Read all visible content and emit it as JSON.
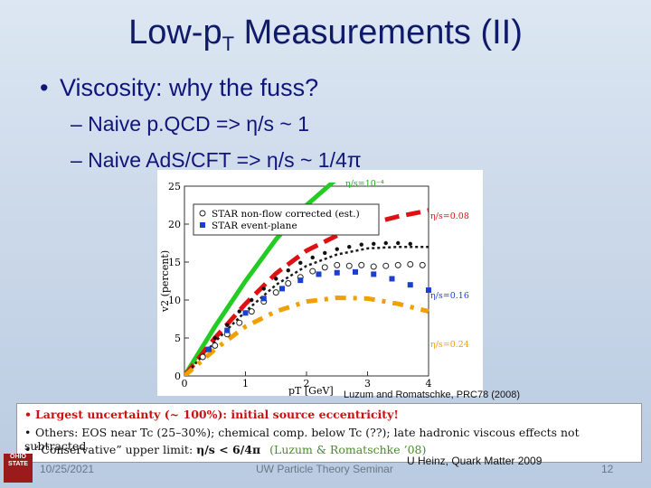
{
  "title": {
    "main": "Low-p",
    "sub": "T",
    "rest": " Measurements (II)"
  },
  "bullet1": "Viscosity: why the fuss?",
  "bullet2": "– Naive p.QCD => η/s ~ 1",
  "bullet3": "– Naive AdS/CFT => η/s ~ 1/4π",
  "chart_data": {
    "type": "scatter",
    "xlabel": "pT [GeV]",
    "ylabel": "v2 (percent)",
    "xlim": [
      0,
      4
    ],
    "ylim": [
      0,
      25
    ],
    "x_ticks": [
      "0",
      "1",
      "2",
      "3",
      "4"
    ],
    "y_ticks": [
      "0",
      "5",
      "10",
      "15",
      "20",
      "25"
    ],
    "legend": [
      "STAR non-flow corrected (est.)",
      "STAR event-plane"
    ],
    "legend_position": "top-left",
    "curve_labels": [
      "η/s=10⁻⁴",
      "η/s=0.08",
      "η/s=0.16",
      "η/s=0.24"
    ],
    "series": [
      {
        "color": "#22cc22",
        "x": [
          0.0,
          0.5,
          1.0,
          1.5,
          2.0,
          2.5
        ],
        "y": [
          0,
          6.5,
          12.5,
          18,
          22.5,
          26
        ]
      },
      {
        "color": "#dd1111",
        "x": [
          0.0,
          0.5,
          1.0,
          1.5,
          2.0,
          2.5,
          3.0,
          3.5,
          4.0
        ],
        "y": [
          0,
          5,
          9.5,
          13.5,
          16.5,
          18.5,
          20,
          21,
          21.8
        ]
      },
      {
        "color": "#1a1a1a",
        "x": [
          0.0,
          0.5,
          1.0,
          1.5,
          2.0,
          2.5,
          3.0,
          3.5,
          4.0
        ],
        "y": [
          0,
          4.5,
          8.5,
          12,
          14.5,
          16,
          16.8,
          17,
          17
        ]
      },
      {
        "color": "#f0a000",
        "x": [
          0.0,
          0.5,
          1.0,
          1.5,
          2.0,
          2.5,
          3.0,
          3.5,
          4.0
        ],
        "y": [
          0,
          3.5,
          6.5,
          8.5,
          9.8,
          10.3,
          10.2,
          9.5,
          8.5
        ]
      }
    ],
    "points_open": {
      "x": [
        0.3,
        0.5,
        0.7,
        0.9,
        1.1,
        1.3,
        1.5,
        1.7,
        1.9,
        2.1,
        2.3,
        2.5,
        2.7,
        2.9,
        3.1,
        3.3,
        3.5,
        3.7,
        3.9
      ],
      "y": [
        2.5,
        4,
        5.5,
        7,
        8.5,
        9.8,
        11,
        12.2,
        13,
        13.8,
        14.3,
        14.6,
        14.5,
        14.6,
        14.4,
        14.5,
        14.6,
        14.7,
        14.6
      ]
    },
    "points_filled": {
      "x": [
        0.4,
        0.7,
        1.0,
        1.3,
        1.6,
        1.9,
        2.2,
        2.5,
        2.8,
        3.1,
        3.4,
        3.7,
        4.0
      ],
      "y": [
        3.5,
        6,
        8.3,
        10.2,
        11.5,
        12.6,
        13.4,
        13.6,
        13.7,
        13.4,
        12.8,
        12.0,
        11.3
      ]
    },
    "points_dots": {
      "x": [
        0.5,
        0.7,
        0.9,
        1.1,
        1.3,
        1.5,
        1.7,
        1.9,
        2.1,
        2.3,
        2.5,
        2.7,
        2.9,
        3.1,
        3.3,
        3.5,
        3.7
      ],
      "y": [
        5,
        6.7,
        8.5,
        10,
        11.5,
        12.8,
        13.9,
        14.9,
        15.6,
        16.2,
        16.7,
        17.0,
        17.3,
        17.4,
        17.5,
        17.5,
        17.4
      ]
    }
  },
  "citation": "Luzum and Romatschke, PRC78 (2008)",
  "box": {
    "line1": "Largest uncertainty (~ 100%): initial source eccentricity!",
    "line2": "Others: EOS near Tc (25–30%); chemical comp. below Tc (??); late hadronic viscous effects not subtracted",
    "line3_left": "“Conservative” upper limit:",
    "line3_formula": "η/s < 6/4π",
    "line3_ref": "(Luzum & Romatschke ’08)"
  },
  "logo_text": "OHIO STATE",
  "footer": {
    "date": "10/25/2021",
    "center": "UW Particle Theory Seminar",
    "right": "U Heinz, Quark Matter 2009",
    "page": "12"
  }
}
